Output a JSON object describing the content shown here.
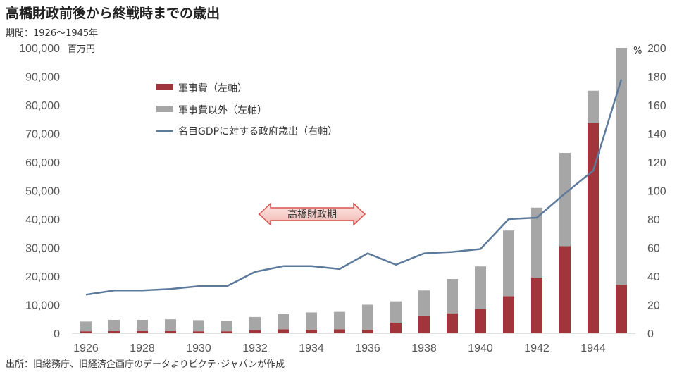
{
  "title": "高橋財政前後から終戦時までの歳出",
  "period": "期間：1926～1945年",
  "source": "出所：旧総務庁、旧経済企画庁のデータよりピクテ･ジャパンが作成",
  "left_unit": "百万円",
  "right_unit": "%",
  "arrow_label": "高橋財政期",
  "chart_data": {
    "type": "bar",
    "years": [
      1926,
      1927,
      1928,
      1929,
      1930,
      1931,
      1932,
      1933,
      1934,
      1935,
      1936,
      1937,
      1938,
      1939,
      1940,
      1941,
      1942,
      1943,
      1944,
      1945
    ],
    "x_tick_labels": [
      "1926",
      "1928",
      "1930",
      "1932",
      "1934",
      "1936",
      "1938",
      "1940",
      "1942",
      "1944"
    ],
    "left_axis": {
      "ylim": [
        0,
        100000
      ],
      "ticks": [
        "0",
        "10,000",
        "20,000",
        "30,000",
        "40,000",
        "50,000",
        "60,000",
        "70,000",
        "80,000",
        "90,000",
        "100,000"
      ]
    },
    "right_axis": {
      "ylim": [
        0,
        200
      ],
      "ticks": [
        "0",
        "20",
        "40",
        "60",
        "80",
        "100",
        "120",
        "140",
        "160",
        "180",
        "200"
      ]
    },
    "series": [
      {
        "name": "軍事費（左軸）",
        "kind": "bar",
        "color": "#A0353B",
        "values": [
          700,
          800,
          800,
          800,
          700,
          700,
          1100,
          1400,
          1300,
          1400,
          1300,
          3700,
          6200,
          7000,
          8500,
          13000,
          19500,
          30500,
          73700,
          17000
        ]
      },
      {
        "name": "軍事費以外（左軸）",
        "kind": "bar-stacked",
        "color": "#A6A6A6",
        "values": [
          3400,
          3900,
          3900,
          4100,
          3900,
          3600,
          4600,
          5300,
          6000,
          6100,
          8700,
          7500,
          8800,
          12000,
          14900,
          23000,
          24500,
          32700,
          11300,
          83000
        ]
      },
      {
        "name": "名目GDPに対する政府歳出（右軸）",
        "kind": "line",
        "axis": "right",
        "color": "#5C7A9C",
        "values": [
          27,
          30,
          30,
          31,
          33,
          33,
          43,
          47,
          47,
          45,
          56,
          48,
          56,
          57,
          59,
          80,
          81,
          98,
          114,
          178
        ]
      }
    ],
    "legend_position": "upper-left",
    "grid": false
  }
}
